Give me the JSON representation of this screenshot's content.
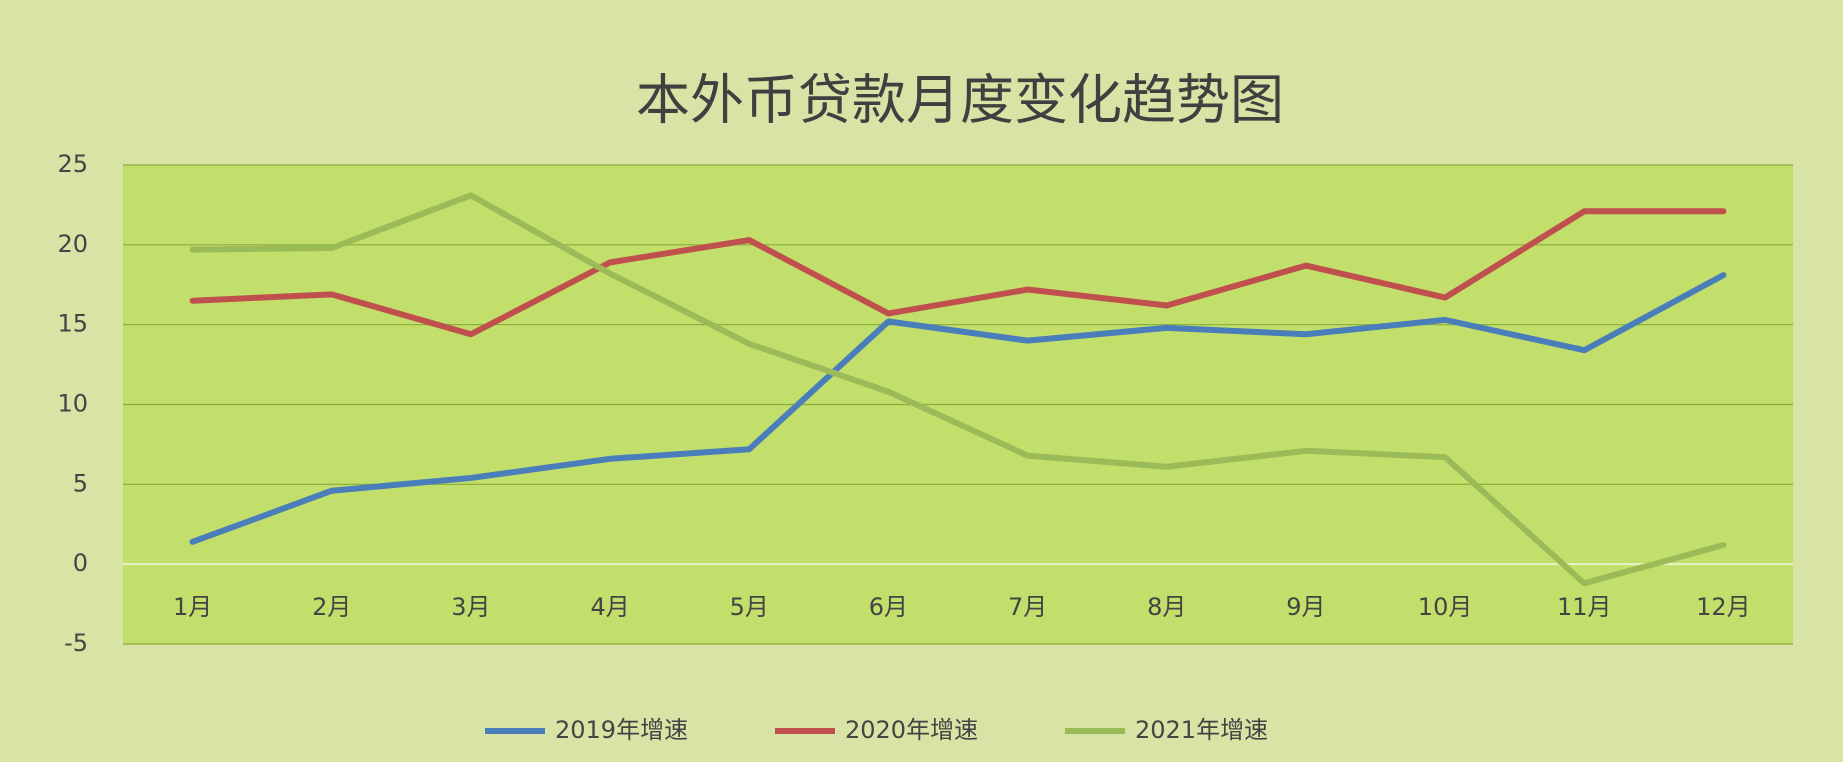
{
  "chart_data": {
    "type": "line",
    "title": "本外币贷款月度变化趋势图",
    "categories": [
      "1月",
      "2月",
      "3月",
      "4月",
      "5月",
      "6月",
      "7月",
      "8月",
      "9月",
      "10月",
      "11月",
      "12月"
    ],
    "series": [
      {
        "name": "2019年增速",
        "color": "#4a7ebb",
        "values": [
          1.4,
          4.6,
          5.4,
          6.6,
          7.2,
          15.2,
          14.0,
          14.8,
          14.4,
          15.3,
          13.4,
          18.1
        ]
      },
      {
        "name": "2020年增速",
        "color": "#c0504d",
        "values": [
          16.5,
          16.9,
          14.4,
          18.9,
          20.3,
          15.7,
          17.2,
          16.2,
          18.7,
          16.7,
          22.1,
          22.1
        ]
      },
      {
        "name": "2021年增速",
        "color": "#9bbb59",
        "values": [
          19.7,
          19.8,
          23.1,
          18.2,
          13.8,
          10.8,
          6.8,
          6.1,
          7.1,
          6.7,
          -1.2,
          1.2
        ]
      }
    ],
    "ylim": [
      -5,
      25
    ],
    "yticks": [
      -5,
      0,
      5,
      10,
      15,
      20,
      25
    ],
    "grid": true,
    "legend": "bottom"
  }
}
